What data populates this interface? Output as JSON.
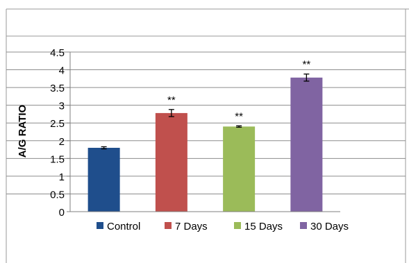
{
  "chart_data": {
    "type": "bar",
    "title": "",
    "xlabel": "",
    "ylabel": "A/G RATIO",
    "ylim": [
      0,
      4.5
    ],
    "yticks": [
      "0",
      "0.5",
      "1",
      "1.5",
      "2",
      "2.5",
      "3",
      "3.5",
      "4",
      "4.5"
    ],
    "categories": [
      "Control",
      "7 Days",
      "15 Days",
      "30 Days"
    ],
    "values": [
      1.8,
      2.78,
      2.4,
      3.78
    ],
    "errors": [
      0.03,
      0.1,
      0.02,
      0.1
    ],
    "annotations": [
      "",
      "**",
      "**",
      "**"
    ],
    "colors": [
      "#1f4e8c",
      "#c0504d",
      "#9bbb59",
      "#8064a2"
    ],
    "grid": "horizontal",
    "legend_position": "bottom"
  }
}
